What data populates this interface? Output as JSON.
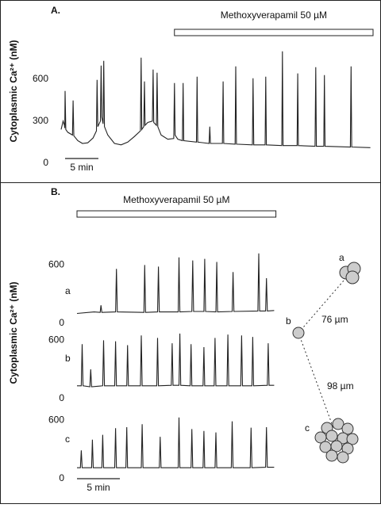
{
  "chart_data": [
    {
      "type": "line",
      "title": "A.",
      "ylabel": "Cytoplasmic Ca²⁺ (nM)",
      "color": "#222222",
      "annotation": {
        "label": "Methoxyverapamil 50 µM",
        "x": [
          17,
          46.8
        ]
      },
      "scale_bar": {
        "label": "5 min",
        "value": 5
      },
      "xlim": [
        0,
        46.8
      ],
      "ylim": [
        -120,
        1000
      ],
      "yticks": [
        0,
        300,
        600
      ],
      "x": [
        0,
        0.3,
        0.5,
        0.55,
        0.6,
        0.7,
        1.0,
        1.7,
        1.8,
        1.9,
        2.5,
        3.2,
        4.0,
        4.8,
        5.3,
        5.4,
        5.5,
        5.9,
        6.0,
        6.1,
        6.3,
        6.4,
        6.5,
        7.0,
        8.0,
        9.0,
        10.0,
        11.0,
        11.9,
        12.0,
        12.1,
        12.4,
        12.5,
        12.6,
        13.0,
        13.7,
        13.8,
        13.9,
        14.3,
        14.4,
        14.5,
        15.0,
        16.0,
        16.9,
        17.0,
        17.1,
        17.5,
        18.2,
        18.3,
        18.4,
        20.3,
        20.4,
        20.5,
        22.2,
        22.3,
        22.4,
        24.2,
        24.3,
        24.4,
        26.1,
        26.2,
        26.3,
        28.7,
        28.8,
        28.9,
        30.6,
        30.7,
        30.8,
        33.1,
        33.2,
        33.3,
        35.4,
        35.5,
        35.6,
        38.1,
        38.2,
        38.3,
        39.4,
        39.5,
        39.6,
        43.4,
        43.5,
        43.6,
        46.4
      ],
      "values": [
        240,
        300,
        270,
        250,
        515,
        240,
        220,
        200,
        447,
        195,
        160,
        140,
        145,
        180,
        230,
        594,
        260,
        300,
        696,
        330,
        280,
        730,
        260,
        200,
        140,
        130,
        150,
        190,
        230,
        753,
        240,
        260,
        583,
        270,
        290,
        300,
        668,
        290,
        270,
        645,
        260,
        200,
        170,
        175,
        572,
        200,
        170,
        160,
        572,
        160,
        150,
        617,
        150,
        140,
        260,
        140,
        140,
        583,
        140,
        135,
        690,
        135,
        130,
        606,
        130,
        130,
        617,
        130,
        125,
        798,
        125,
        125,
        640,
        125,
        120,
        685,
        120,
        120,
        628,
        120,
        115,
        690,
        115,
        110
      ]
    },
    {
      "type": "line",
      "title": "B.",
      "ylabel": "Cytoplasmic Ca²⁺ (nM)",
      "color": "#222222",
      "annotation": {
        "label": "Methoxyverapamil 50 µM",
        "x": [
          0,
          23.2
        ]
      },
      "scale_bar": {
        "label": "5 min",
        "value": 5
      },
      "xlim": [
        0,
        23.2
      ],
      "traces": [
        {
          "label": "a",
          "ylim": [
            -60,
            800
          ],
          "yticks": [
            0,
            600
          ],
          "x": [
            0,
            2,
            2.7,
            2.8,
            2.9,
            4.5,
            4.6,
            4.7,
            7.8,
            7.9,
            8.0,
            9.4,
            9.5,
            9.6,
            11.8,
            11.9,
            12.0,
            13.4,
            13.5,
            13.6,
            14.8,
            14.9,
            15.0,
            16.2,
            16.3,
            16.4,
            18.1,
            18.2,
            18.3,
            21.1,
            21.2,
            21.3,
            22.0,
            22.1,
            22.2,
            23.0
          ],
          "values": [
            100,
            115,
            110,
            184,
            110,
            115,
            560,
            115,
            110,
            600,
            110,
            115,
            584,
            115,
            115,
            680,
            115,
            120,
            648,
            120,
            120,
            664,
            120,
            115,
            632,
            115,
            120,
            528,
            120,
            125,
            720,
            125,
            125,
            464,
            125,
            130
          ]
        },
        {
          "label": "b",
          "ylim": [
            -60,
            800
          ],
          "yticks": [
            0,
            600
          ],
          "x": [
            0,
            0.5,
            0.6,
            0.7,
            1.5,
            1.6,
            1.7,
            3.0,
            3.1,
            3.2,
            4.4,
            4.5,
            4.6,
            5.8,
            5.9,
            6.0,
            7.4,
            7.5,
            7.6,
            9.3,
            9.4,
            9.5,
            11.0,
            11.1,
            11.2,
            11.9,
            12.0,
            12.1,
            13.2,
            13.3,
            13.4,
            14.7,
            14.8,
            14.9,
            16.0,
            16.1,
            16.2,
            17.5,
            17.6,
            17.7,
            19.1,
            19.2,
            19.3,
            20.4,
            20.5,
            20.6,
            22.2,
            22.3,
            22.4,
            23.0
          ],
          "values": [
            130,
            130,
            560,
            130,
            120,
            300,
            120,
            130,
            600,
            130,
            130,
            590,
            130,
            130,
            550,
            130,
            130,
            650,
            130,
            130,
            625,
            130,
            135,
            570,
            135,
            135,
            670,
            135,
            130,
            560,
            130,
            130,
            530,
            130,
            130,
            625,
            130,
            130,
            660,
            130,
            130,
            650,
            130,
            130,
            635,
            130,
            135,
            570,
            135,
            135
          ]
        },
        {
          "label": "c",
          "ylim": [
            -60,
            800
          ],
          "yticks": [
            0,
            600
          ],
          "x": [
            0,
            0.4,
            0.5,
            0.6,
            1.7,
            1.8,
            1.9,
            2.9,
            3.0,
            3.1,
            4.4,
            4.5,
            4.6,
            5.7,
            5.8,
            5.9,
            7.5,
            7.6,
            7.7,
            9.6,
            9.7,
            9.8,
            11.8,
            11.9,
            12.0,
            13.3,
            13.4,
            13.5,
            14.7,
            14.8,
            14.9,
            16.1,
            16.2,
            16.3,
            18.0,
            18.1,
            18.2,
            20.2,
            20.3,
            20.4,
            22.0,
            22.1,
            22.2,
            23.0
          ],
          "values": [
            110,
            110,
            290,
            110,
            110,
            400,
            110,
            110,
            450,
            110,
            110,
            520,
            110,
            110,
            530,
            110,
            110,
            560,
            110,
            110,
            430,
            110,
            110,
            630,
            110,
            110,
            510,
            110,
            110,
            490,
            110,
            110,
            475,
            110,
            110,
            590,
            110,
            110,
            525,
            110,
            115,
            530,
            115,
            115
          ]
        }
      ]
    }
  ],
  "diagram": {
    "cells": [
      "a",
      "b",
      "c"
    ],
    "distances": [
      "76 µm",
      "98 µm"
    ]
  }
}
